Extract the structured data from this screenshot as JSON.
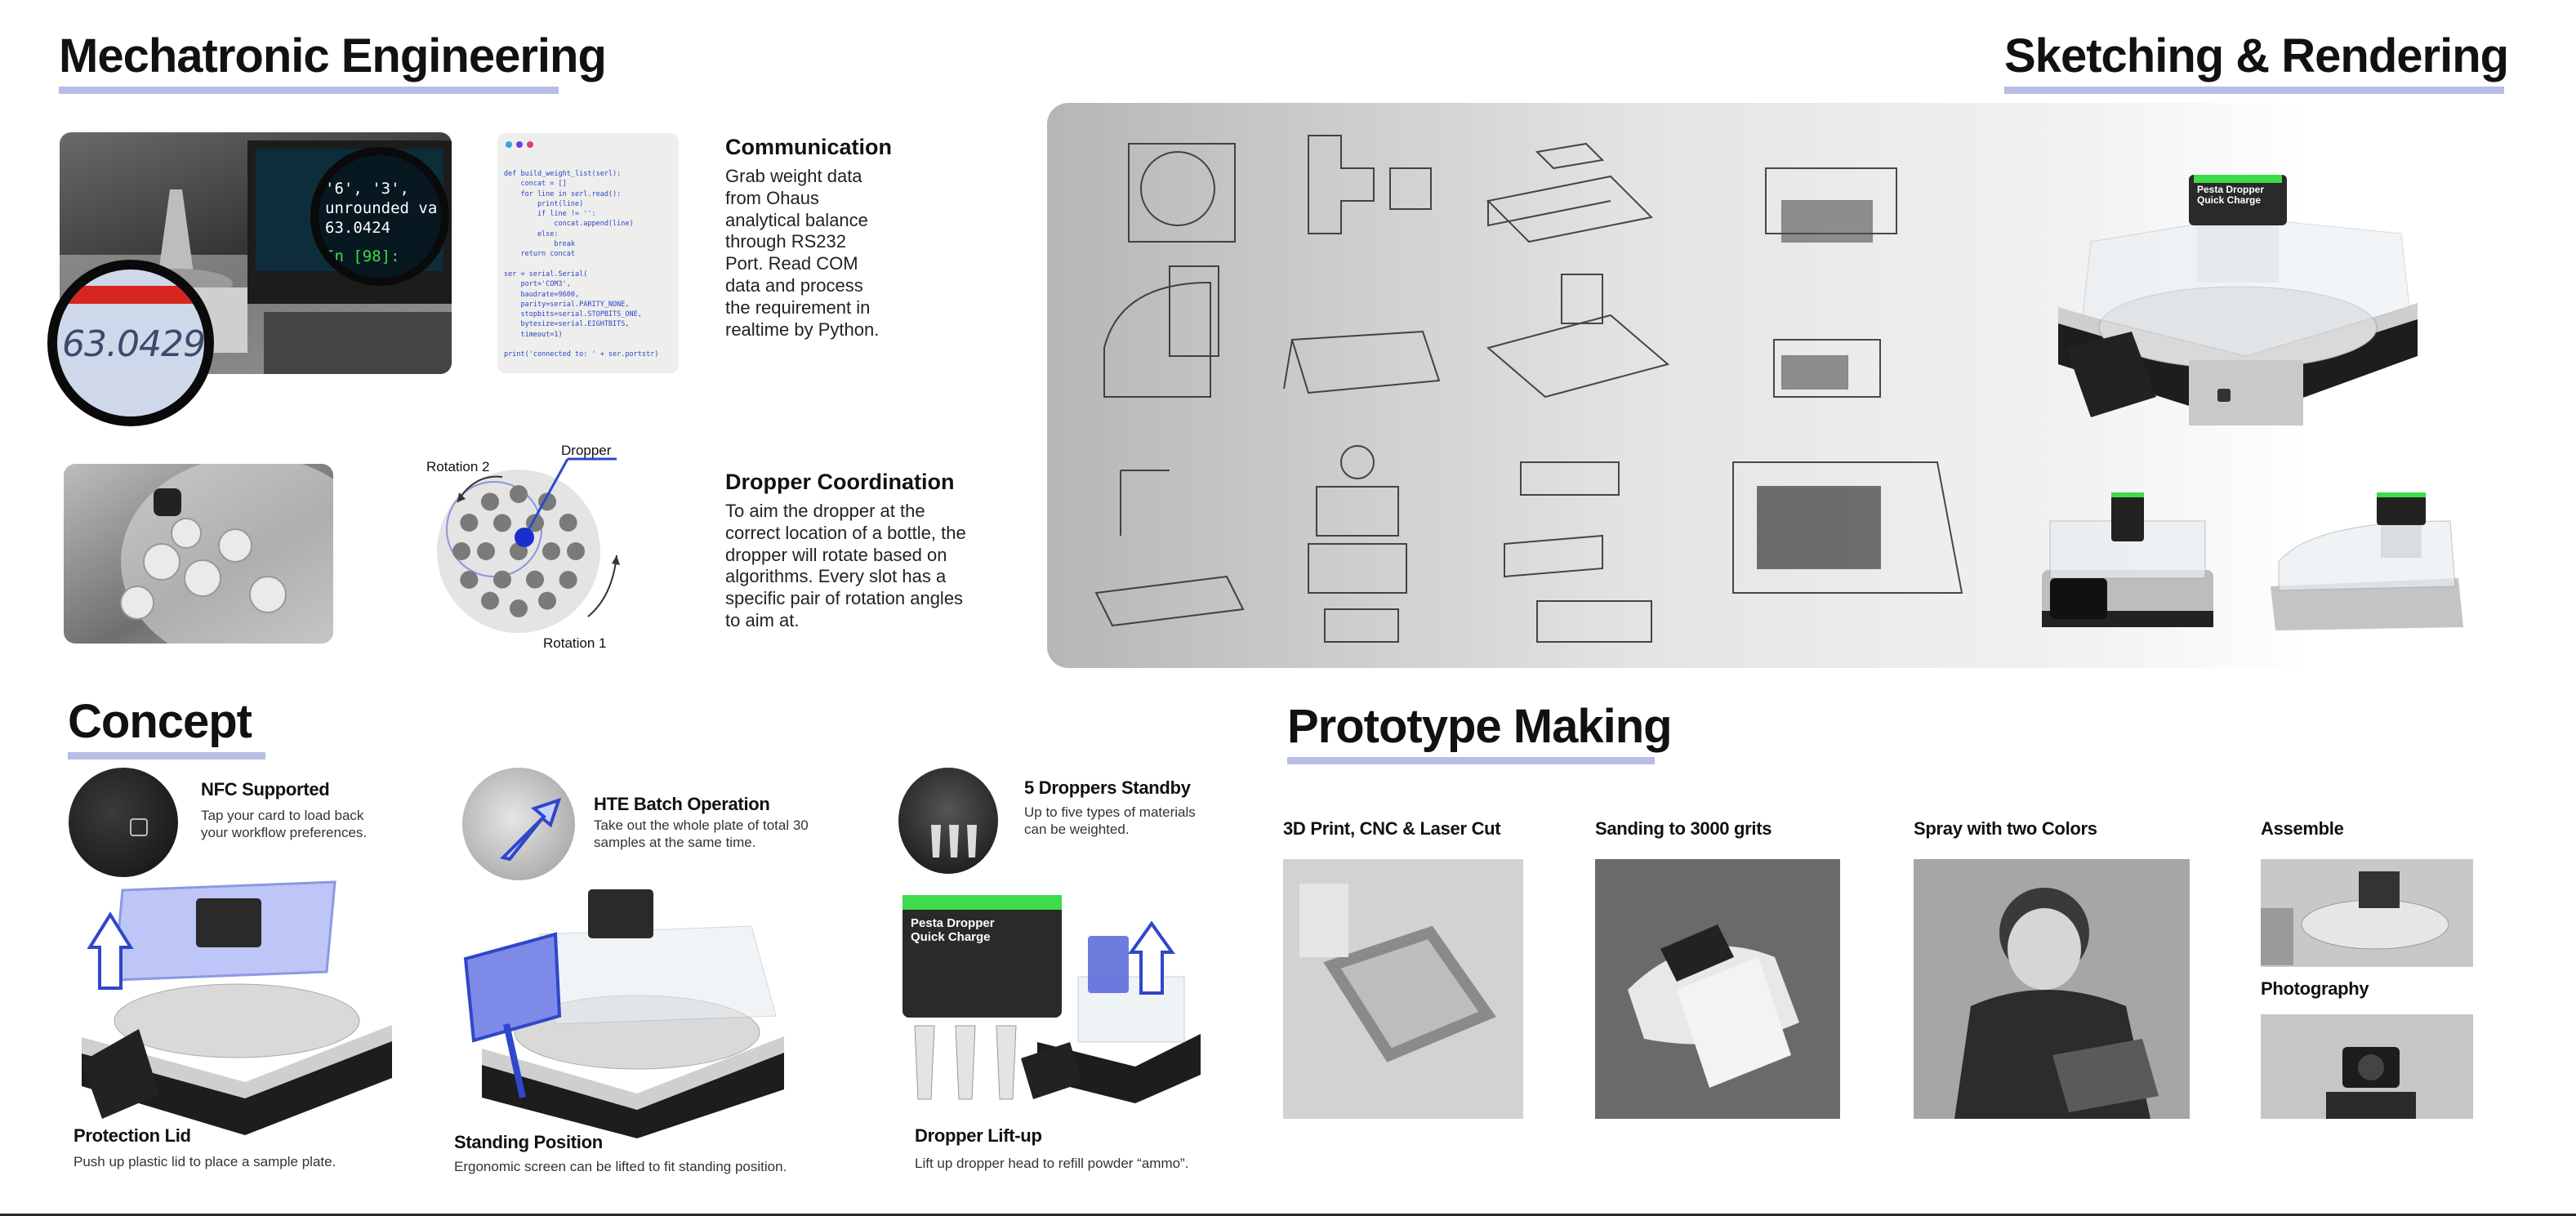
{
  "mechatronic": {
    "title": "Mechatronic Engineering",
    "readout_big": "63.0429",
    "readout_screen_1": "'6', '3',",
    "readout_screen_2": "unrounded va",
    "readout_screen_3": "63.0424",
    "readout_screen_4": "In [98]:",
    "code_lines": [
      "def build_weight_list(serl):",
      "    concat = []",
      "    for line in serl.read():",
      "        print(line)",
      "        if line != '':",
      "            concat.append(line)",
      "        else:",
      "            break",
      "    return concat",
      "",
      "ser = serial.Serial(",
      "    port='COM3',",
      "    baudrate=9600,",
      "    parity=serial.PARITY_NONE,",
      "    stopbits=serial.STOPBITS_ONE,",
      "    bytesize=serial.EIGHTBITS,",
      "    timeout=1)",
      "",
      "print('connected to: ' + ser.portstr)"
    ],
    "communication": {
      "heading": "Communication",
      "text": "Grab weight data from Ohaus analytical balance through RS232 Port. Read COM data and process the requirement in realtime by Python."
    },
    "diagram": {
      "label_dropper": "Dropper",
      "label_rotation2": "Rotation 2",
      "label_rotation1": "Rotation 1"
    },
    "dropper_coordination": {
      "heading": "Dropper Coordination",
      "text": "To aim the dropper at the correct location of a bottle, the dropper will rotate based on algorithms. Every slot has a specific pair of rotation angles to aim at."
    }
  },
  "sketching": {
    "title": "Sketching & Rendering",
    "device_label_1": "Pesta Dropper",
    "device_label_2": "Quick Charge"
  },
  "concept": {
    "title": "Concept",
    "features": [
      {
        "title": "NFC Supported",
        "text": "Tap your card to load back your workflow preferences."
      },
      {
        "title": "HTE Batch Operation",
        "text": "Take out the whole plate of total 30 samples at the same time."
      },
      {
        "title": "5 Droppers Standby",
        "text": "Up to five types of materials can be weighted."
      }
    ],
    "captions": [
      {
        "title": "Protection Lid",
        "text": "Push up plastic lid to place a sample plate."
      },
      {
        "title": "Standing Position",
        "text": "Ergonomic screen can be lifted to fit standing position."
      },
      {
        "title": "Dropper Lift-up",
        "text": "Lift up dropper head to refill powder “ammo”."
      }
    ]
  },
  "prototype": {
    "title": "Prototype Making",
    "steps": [
      "3D Print, CNC & Laser Cut",
      "Sanding to 3000 grits",
      "Spray with two Colors",
      "Assemble",
      "Photography"
    ]
  },
  "colors": {
    "underline": "#b7bde3",
    "accent_blue": "#2f47c9",
    "green": "#3ddc4a"
  }
}
